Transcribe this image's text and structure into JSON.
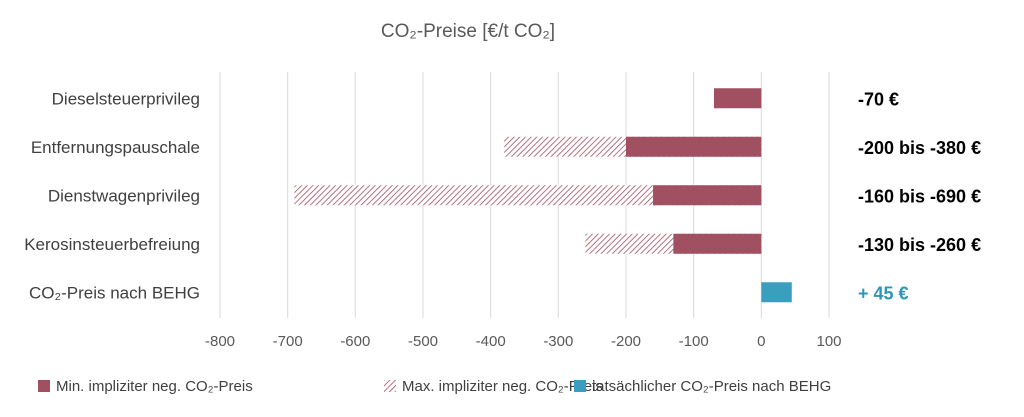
{
  "chart_data": {
    "type": "bar",
    "orientation": "horizontal",
    "title": "CO₂-Preise [€/t CO₂]",
    "categories": [
      "Dieselsteuerprivileg",
      "Entfernungspauschale",
      "Dienstwagenprivileg",
      "Kerosinsteuerbefreiung",
      "CO₂-Preis nach BEHG"
    ],
    "series": [
      {
        "name": "Min. impliziter neg. CO₂-Preis",
        "values": [
          -70,
          -200,
          -160,
          -130,
          null
        ],
        "color": "#a05060",
        "pattern": "solid"
      },
      {
        "name": "Max. impliziter neg. CO₂-Preis",
        "values": [
          null,
          -380,
          -690,
          -260,
          null
        ],
        "color": "#a05060",
        "pattern": "hatched"
      },
      {
        "name": "tatsächlicher CO₂-Preis nach BEHG",
        "values": [
          null,
          null,
          null,
          null,
          45
        ],
        "color": "#3a9fbf",
        "pattern": "solid"
      }
    ],
    "annotations": [
      {
        "text": "-70 €",
        "color": "#000000"
      },
      {
        "text": "-200 bis -380 €",
        "color": "#000000"
      },
      {
        "text": "-160 bis -690 €",
        "color": "#000000"
      },
      {
        "text": "-130 bis -260 €",
        "color": "#000000"
      },
      {
        "text": "+ 45 €",
        "color": "#2e95b8"
      }
    ],
    "xlim": [
      -800,
      100
    ],
    "xticks": [
      -800,
      -700,
      -600,
      -500,
      -400,
      -300,
      -200,
      -100,
      0,
      100
    ],
    "grid": true,
    "legend_position": "bottom"
  }
}
